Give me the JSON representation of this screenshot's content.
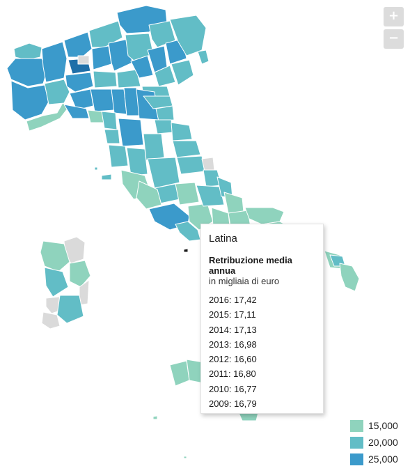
{
  "colors": {
    "low": "#8fd3bd",
    "mid": "#62bdc6",
    "high": "#3b9acb",
    "top": "#1f6fa8",
    "nodata": "#dadada",
    "border": "#ffffff"
  },
  "zoom": {
    "in_label": "+",
    "out_label": "−"
  },
  "tooltip": {
    "region": "Latina",
    "metric": "Retribuzione media annua",
    "unit": "in migliaia di euro",
    "rows": [
      "2016: 17,42",
      "2015: 17,11",
      "2014: 17,13",
      "2013: 16,98",
      "2012: 16,60",
      "2011: 16,80",
      "2010: 16,77",
      "2009: 16,79"
    ]
  },
  "legend": [
    {
      "label": "15,000",
      "color": "#8fd3bd"
    },
    {
      "label": "20,000",
      "color": "#62bdc6"
    },
    {
      "label": "25,000",
      "color": "#3b9acb"
    }
  ]
}
